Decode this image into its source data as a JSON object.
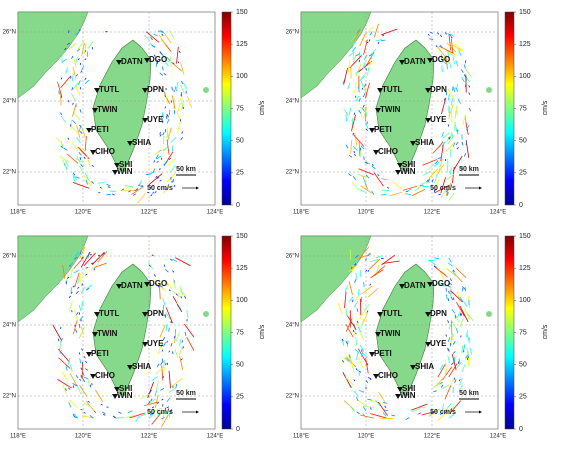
{
  "map": {
    "lat_labels": [
      "26°N",
      "24°N",
      "22°N"
    ],
    "lon_labels": [
      "118°E",
      "120°E",
      "122°E",
      "124°E"
    ],
    "stations": [
      "DATN",
      "DGO",
      "TUTL",
      "DPN",
      "TWIN",
      "UYE",
      "PETI",
      "SHIA",
      "CIHO",
      "SHI",
      "WIN"
    ],
    "colorbar": {
      "ticks": [
        0,
        25,
        50,
        75,
        100,
        125,
        150
      ],
      "unit": "cm/s"
    },
    "distance_scale": "50 km",
    "vector_scale": "50 cm/s"
  }
}
